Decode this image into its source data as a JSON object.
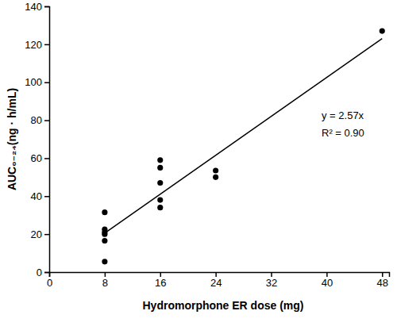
{
  "chart_data": {
    "type": "scatter",
    "x_label": "Hydromorphone ER dose (mg)",
    "y_label": "AUC₀₋₂₄(ng · h/mL)",
    "annotations": [
      "y = 2.57x",
      "R² = 0.90"
    ],
    "xlim": [
      0,
      49
    ],
    "xticks": [
      0,
      8,
      16,
      24,
      32,
      40,
      48
    ],
    "ylim": [
      0,
      140
    ],
    "yticks": [
      0,
      20,
      40,
      60,
      80,
      100,
      120,
      140
    ],
    "grid": false,
    "series": [
      {
        "type": "scatter",
        "marker": "circle",
        "color": "#000000",
        "x": [
          8,
          8,
          8,
          8,
          8,
          8,
          16,
          16,
          16,
          16,
          16,
          24,
          24,
          48
        ],
        "values": [
          31.5,
          22.5,
          21,
          20,
          16.5,
          5.5,
          59,
          55,
          47,
          38,
          34,
          53.5,
          50,
          127
        ]
      },
      {
        "type": "line",
        "line_style": "solid",
        "color": "#000000",
        "x": [
          8,
          48
        ],
        "values": [
          20.5,
          123
        ]
      }
    ]
  }
}
